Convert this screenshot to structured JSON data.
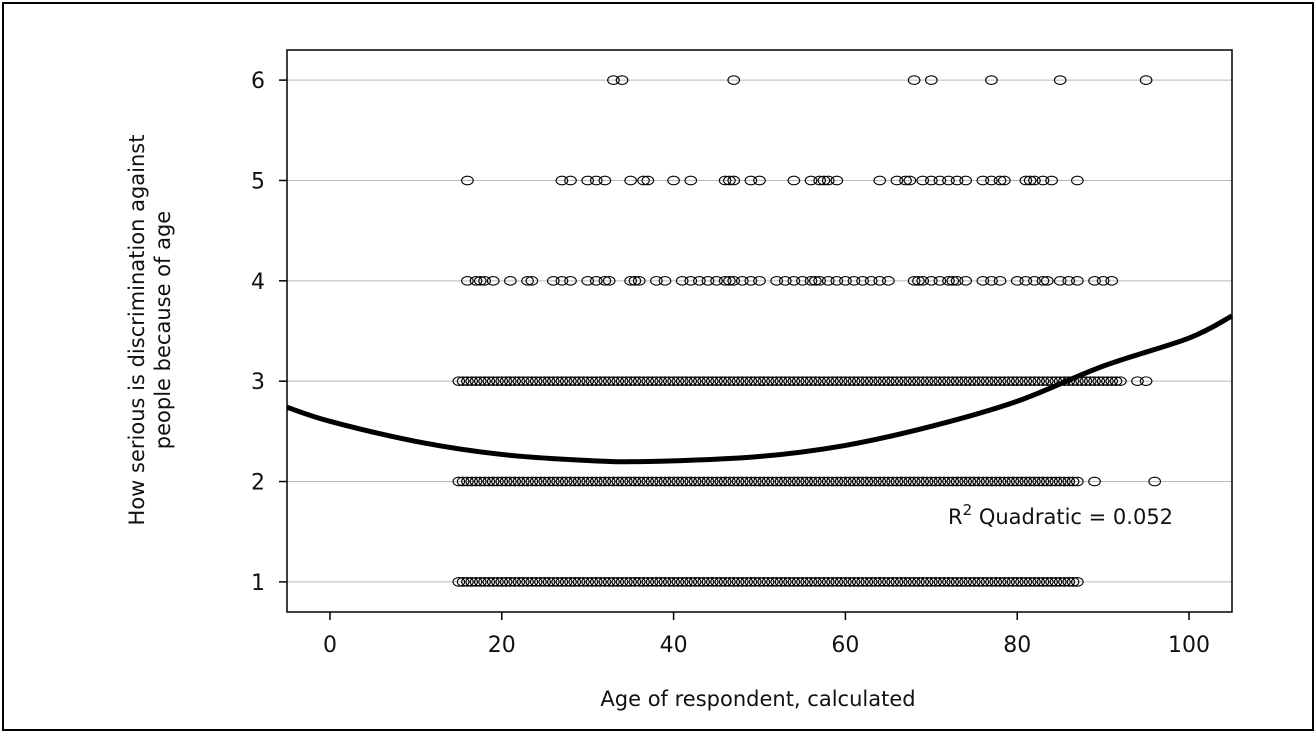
{
  "chart_data": {
    "type": "scatter",
    "title": "",
    "xlabel": "Age of respondent, calculated",
    "ylabel_lines": [
      "How serious is discrimination against",
      "people because of age"
    ],
    "xlim": [
      -5,
      105
    ],
    "ylim": [
      0.7,
      6.3
    ],
    "x_ticks": [
      0,
      20,
      40,
      60,
      80,
      100
    ],
    "y_ticks": [
      1,
      2,
      3,
      4,
      5,
      6
    ],
    "grid": "horizontal",
    "marker": "hollow-ellipse",
    "fit": {
      "type": "quadratic",
      "label_prefix": "R",
      "label_sup": "2",
      "label_suffix": " Quadratic = 0.052",
      "curve_points": [
        [
          -5,
          2.74
        ],
        [
          0,
          2.6
        ],
        [
          10,
          2.4
        ],
        [
          20,
          2.27
        ],
        [
          30,
          2.21
        ],
        [
          37,
          2.2
        ],
        [
          50,
          2.25
        ],
        [
          60,
          2.36
        ],
        [
          70,
          2.55
        ],
        [
          80,
          2.8
        ],
        [
          90,
          3.15
        ],
        [
          100,
          3.43
        ],
        [
          105,
          3.65
        ]
      ]
    },
    "series": [
      {
        "y": 1,
        "ranges": [
          [
            15,
            87
          ]
        ],
        "points": []
      },
      {
        "y": 2,
        "ranges": [
          [
            15,
            87
          ]
        ],
        "points": [
          89,
          96
        ]
      },
      {
        "y": 3,
        "ranges": [
          [
            15,
            92
          ]
        ],
        "points": [
          94,
          95
        ]
      },
      {
        "y": 4,
        "ranges": [],
        "points": [
          16,
          17,
          17.5,
          18,
          19,
          21,
          23,
          23.5,
          26,
          27,
          28,
          30,
          31,
          32,
          32.5,
          35,
          35.5,
          36,
          38,
          39,
          41,
          42,
          43,
          44,
          45,
          46,
          46.5,
          47,
          48,
          49,
          50,
          52,
          53,
          54,
          55,
          56,
          56.5,
          57,
          58,
          59,
          60,
          61,
          62,
          63,
          64,
          65,
          68,
          68.5,
          69,
          70,
          71,
          72,
          72.5,
          73,
          74,
          76,
          77,
          78,
          80,
          81,
          82,
          83,
          83.5,
          85,
          86,
          87,
          89,
          90,
          91
        ]
      },
      {
        "y": 5,
        "ranges": [],
        "points": [
          16,
          27,
          28,
          30,
          31,
          32,
          35,
          36.5,
          37,
          40,
          42,
          46,
          46.5,
          47,
          49,
          50,
          54,
          56,
          57,
          57.5,
          58,
          59,
          64,
          66,
          67,
          67.5,
          69,
          70,
          71,
          72,
          73,
          74,
          76,
          77,
          78,
          78.5,
          81,
          81.5,
          82,
          83,
          84,
          87
        ]
      },
      {
        "y": 6,
        "ranges": [],
        "points": [
          33,
          34,
          47,
          68,
          70,
          77,
          85,
          95
        ]
      }
    ]
  }
}
